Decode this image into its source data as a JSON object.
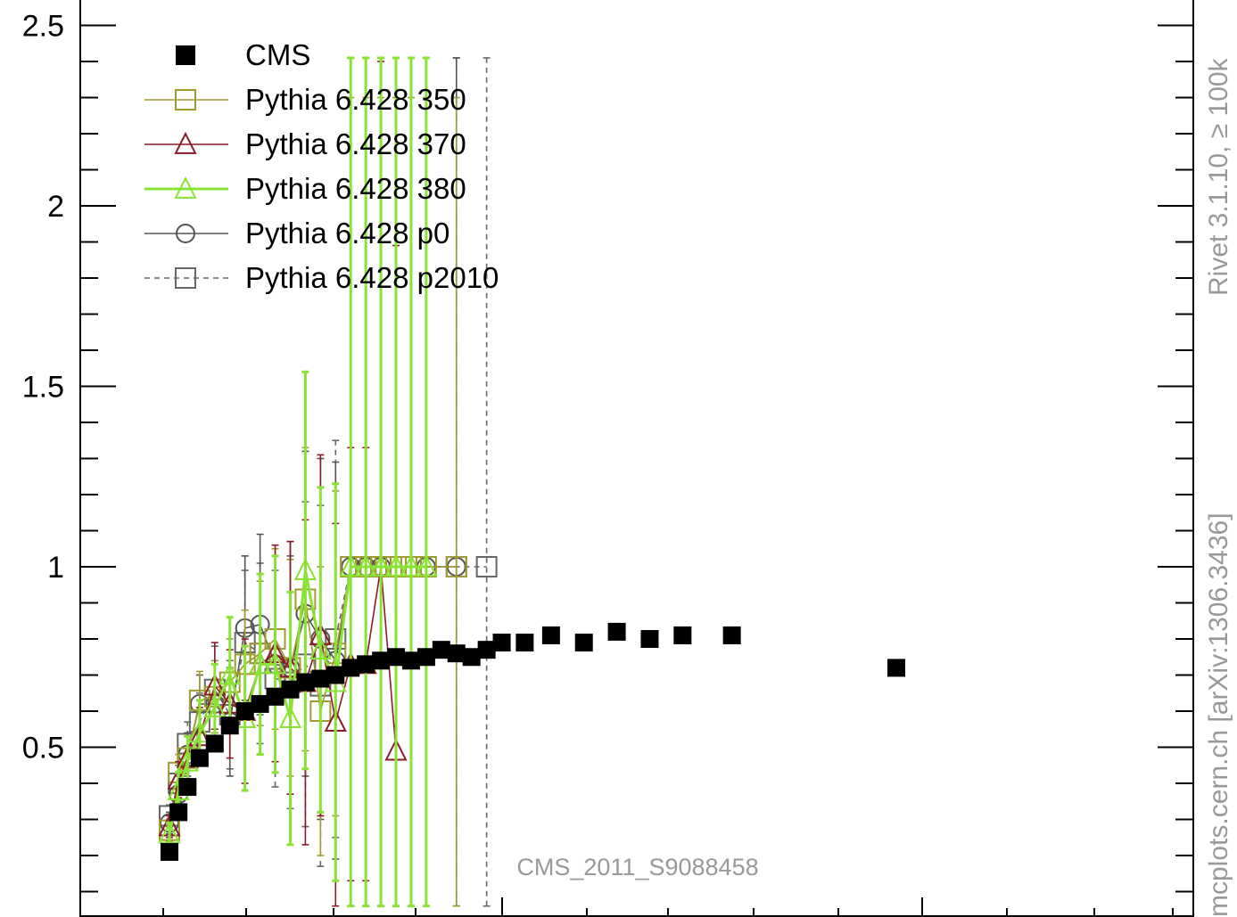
{
  "chart_data": {
    "type": "scatter",
    "title": "",
    "xlabel": "",
    "ylabel": "",
    "ylim": [
      0.06,
      2.57
    ],
    "xlim": [
      0,
      15
    ],
    "ytick_labels": [
      "0.5",
      "1",
      "1.5",
      "2",
      "2.5"
    ],
    "legend_placement": "top-left",
    "annotation": "CMS_2011_S9088458",
    "side_labels": {
      "top": "Rivet 3.1.10, ≥ 100k",
      "bottom": "mcplots.cern.ch [arXiv:1306.3436]"
    },
    "series": [
      {
        "name": "CMS",
        "color": "#000000",
        "marker": "filled-square",
        "x": [
          1.0,
          1.15,
          1.3,
          1.5,
          1.75,
          2.0,
          2.25,
          2.5,
          2.75,
          3.0,
          3.25,
          3.5,
          3.75,
          4.0,
          4.25,
          4.5,
          4.75,
          5.0,
          5.25,
          5.5,
          5.75,
          6.0,
          6.25,
          6.5,
          6.85,
          7.25,
          7.75,
          8.25,
          8.75,
          9.25,
          10.0,
          12.5
        ],
        "y": [
          0.21,
          0.32,
          0.39,
          0.47,
          0.51,
          0.56,
          0.6,
          0.62,
          0.64,
          0.66,
          0.68,
          0.69,
          0.7,
          0.72,
          0.73,
          0.74,
          0.75,
          0.74,
          0.75,
          0.77,
          0.76,
          0.75,
          0.77,
          0.79,
          0.79,
          0.81,
          0.79,
          0.82,
          0.8,
          0.81,
          0.81,
          0.72
        ]
      },
      {
        "name": "Pythia 6.428 350",
        "color": "#a09b30",
        "marker": "open-square",
        "dashed": false,
        "x": [
          1.0,
          1.15,
          1.3,
          1.5,
          1.75,
          2.0,
          2.25,
          2.5,
          2.75,
          3.0,
          3.25,
          3.5,
          3.75,
          4.0,
          4.25,
          4.5,
          4.75,
          5.0,
          5.25,
          5.75
        ],
        "y": [
          0.27,
          0.43,
          0.47,
          0.63,
          0.64,
          0.68,
          0.73,
          0.76,
          0.8,
          0.72,
          0.91,
          0.6,
          0.76,
          1.0,
          1.0,
          1.0,
          1.0,
          1.0,
          1.0,
          1.0
        ],
        "err": [
          0.03,
          0.05,
          0.06,
          0.08,
          0.1,
          0.12,
          0.15,
          0.2,
          0.25,
          0.3,
          0.42,
          0.4,
          0.45,
          1.3,
          1.3,
          1.3,
          1.3,
          1.3,
          1.3,
          1.3
        ]
      },
      {
        "name": "Pythia 6.428 370",
        "color": "#8b1a2a",
        "marker": "open-triangle",
        "dashed": false,
        "x": [
          1.0,
          1.15,
          1.3,
          1.5,
          1.75,
          2.0,
          2.25,
          2.5,
          2.75,
          3.0,
          3.25,
          3.5,
          3.75,
          4.0,
          4.25,
          4.5,
          4.75
        ],
        "y": [
          0.28,
          0.41,
          0.47,
          0.53,
          0.67,
          0.62,
          0.6,
          0.73,
          0.76,
          0.72,
          0.68,
          0.81,
          0.57,
          0.73,
          0.73,
          1.0,
          0.49
        ],
        "err": [
          0.03,
          0.05,
          0.06,
          0.08,
          0.12,
          0.15,
          0.2,
          0.25,
          0.3,
          0.35,
          0.45,
          0.5,
          0.55,
          0.6,
          0.6,
          1.4,
          1.4
        ]
      },
      {
        "name": "Pythia 6.428 380",
        "color": "#8ae234",
        "marker": "open-triangle",
        "dashed": false,
        "thick": true,
        "x": [
          1.0,
          1.15,
          1.3,
          1.5,
          1.75,
          2.0,
          2.25,
          2.5,
          2.75,
          3.0,
          3.25,
          3.5,
          3.75,
          4.0,
          4.25,
          4.5,
          4.75,
          5.0,
          5.25
        ],
        "y": [
          0.26,
          0.38,
          0.46,
          0.54,
          0.61,
          0.7,
          0.58,
          0.73,
          0.73,
          0.58,
          0.99,
          0.77,
          0.68,
          1.0,
          1.0,
          1.0,
          1.0,
          1.0,
          1.0
        ],
        "err": [
          0.03,
          0.05,
          0.07,
          0.09,
          0.12,
          0.16,
          0.2,
          0.25,
          0.3,
          0.35,
          0.55,
          0.45,
          0.55,
          1.42,
          1.42,
          1.42,
          1.42,
          1.42,
          1.42
        ]
      },
      {
        "name": "Pythia 6.428 p0",
        "color": "#555555",
        "marker": "open-circle",
        "dashed": false,
        "x": [
          1.0,
          1.15,
          1.3,
          1.5,
          1.75,
          2.0,
          2.25,
          2.5,
          2.75,
          3.0,
          3.25,
          3.5,
          3.75,
          4.0,
          4.25,
          4.5,
          5.25,
          5.75
        ],
        "y": [
          0.29,
          0.37,
          0.48,
          0.62,
          0.62,
          0.57,
          0.83,
          0.84,
          0.73,
          0.72,
          0.87,
          0.8,
          0.74,
          1.0,
          1.0,
          1.0,
          1.0,
          1.0
        ],
        "err": [
          0.03,
          0.05,
          0.06,
          0.08,
          0.12,
          0.15,
          0.2,
          0.25,
          0.3,
          0.35,
          0.45,
          0.5,
          0.55,
          1.42,
          1.42,
          1.42,
          1.42,
          1.42
        ]
      },
      {
        "name": "Pythia 6.428 p2010",
        "color": "#666666",
        "marker": "open-square",
        "dashed": true,
        "x": [
          1.0,
          1.15,
          1.3,
          1.5,
          1.75,
          2.0,
          2.25,
          2.5,
          2.75,
          3.0,
          3.25,
          3.5,
          3.75,
          4.0,
          4.25,
          4.5,
          4.75,
          5.0,
          5.75,
          6.25
        ],
        "y": [
          0.31,
          0.4,
          0.51,
          0.57,
          0.66,
          0.59,
          0.79,
          0.76,
          0.69,
          0.68,
          0.73,
          0.67,
          0.8,
          1.0,
          1.0,
          1.0,
          1.0,
          1.0,
          1.0,
          1.0
        ],
        "err": [
          0.03,
          0.05,
          0.06,
          0.08,
          0.12,
          0.15,
          0.2,
          0.25,
          0.3,
          0.35,
          0.45,
          0.5,
          0.55,
          1.42,
          1.42,
          1.42,
          1.42,
          1.42,
          1.42,
          1.42
        ]
      }
    ]
  }
}
